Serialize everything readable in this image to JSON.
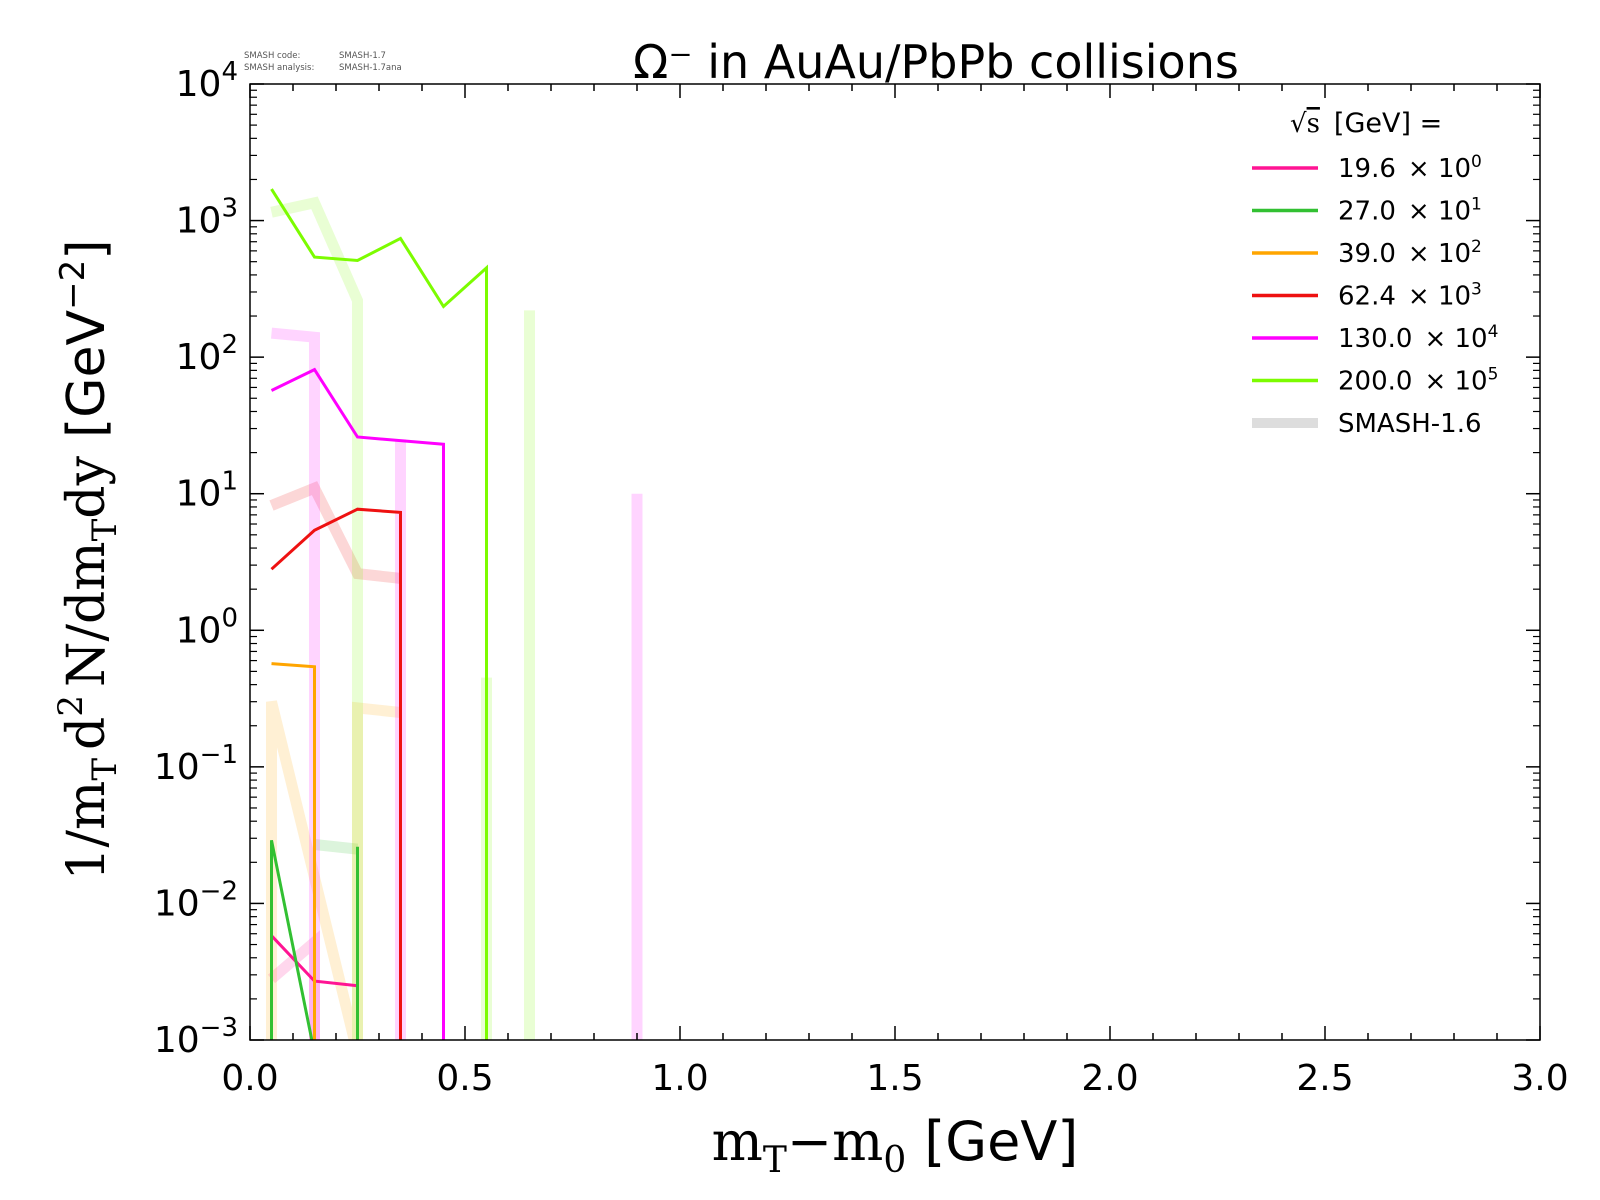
{
  "chart_data": {
    "type": "line",
    "title": "Ω⁻ in AuAu/PbPb collisions",
    "code_info": {
      "code_label": "SMASH code:",
      "code_value": "SMASH-1.7",
      "analysis_label": "SMASH analysis:",
      "analysis_value": "SMASH-1.7ana"
    },
    "xlabel": "mT−m0 [GeV]",
    "xlabel_parts": {
      "m1": "m",
      "sub1": "T",
      "dash": "−m",
      "sub2": "0",
      "unit": "[GeV]"
    },
    "ylabel": "1/mT d2 N/dmTdy [GeV−2]",
    "ylabel_parts": {
      "a": "1/m",
      "sub": "T",
      "b": "d",
      "sup": "2",
      "c": "N/dm",
      "sub2": "T",
      "d": "dy",
      "unit": "[GeV",
      "unit_sup": "−2",
      "unit_end": "]"
    },
    "xlim": [
      0.0,
      3.0
    ],
    "ylim": [
      0.001,
      10000
    ],
    "yscale": "log",
    "x_ticks": [
      "0.0",
      "0.5",
      "1.0",
      "1.5",
      "2.0",
      "2.5",
      "3.0"
    ],
    "y_ticks": [
      {
        "value": 0.001,
        "base": "10",
        "exp": "−3"
      },
      {
        "value": 0.01,
        "base": "10",
        "exp": "−2"
      },
      {
        "value": 0.1,
        "base": "10",
        "exp": "−1"
      },
      {
        "value": 1,
        "base": "10",
        "exp": "0"
      },
      {
        "value": 10,
        "base": "10",
        "exp": "1"
      },
      {
        "value": 100,
        "base": "10",
        "exp": "2"
      },
      {
        "value": 1000,
        "base": "10",
        "exp": "3"
      },
      {
        "value": 10000,
        "base": "10",
        "exp": "4"
      }
    ],
    "legend": {
      "placement": "top-right",
      "title": "√s [GeV] =",
      "title_parts": {
        "root": "√",
        "s": "s",
        "rest": "[GeV] ="
      }
    },
    "series": [
      {
        "name": "19.6 × 10⁰",
        "label": "19.6",
        "times": "× 10",
        "exp": "0",
        "color": "#ff1493",
        "x": [
          0.05,
          0.15,
          0.25
        ],
        "y": [
          0.0058,
          0.0027,
          0.0025
        ]
      },
      {
        "name": "27.0 × 10¹",
        "label": "27.0",
        "times": "× 10",
        "exp": "1",
        "color": "#32c032",
        "x": [
          0.05,
          0.05,
          0.15,
          0.25,
          0.25
        ],
        "y": [
          0.0008,
          0.029,
          0.0008,
          0.0008,
          0.026
        ]
      },
      {
        "name": "39.0 × 10²",
        "label": "39.0",
        "times": "× 10",
        "exp": "2",
        "color": "#ffa500",
        "x": [
          0.05,
          0.15,
          0.15
        ],
        "y": [
          0.57,
          0.54,
          0.0008
        ]
      },
      {
        "name": "62.4 × 10³",
        "label": "62.4",
        "times": "× 10",
        "exp": "3",
        "color": "#ee1111",
        "x": [
          0.05,
          0.15,
          0.25,
          0.35,
          0.35
        ],
        "y": [
          2.8,
          5.4,
          7.7,
          7.3,
          0.0008
        ]
      },
      {
        "name": "130.0 × 10⁴",
        "label": "130.0",
        "times": "× 10",
        "exp": "4",
        "color": "#ff00ff",
        "x": [
          0.05,
          0.15,
          0.25,
          0.45,
          0.45
        ],
        "y": [
          57,
          81,
          26,
          23,
          0.0008
        ]
      },
      {
        "name": "200.0 × 10⁵",
        "label": "200.0",
        "times": "× 10",
        "exp": "5",
        "color": "#7cfc00",
        "x": [
          0.05,
          0.15,
          0.25,
          0.35,
          0.45,
          0.55,
          0.55
        ],
        "y": [
          1700,
          540,
          510,
          740,
          235,
          450,
          0.0008
        ]
      }
    ],
    "reference": {
      "name": "SMASH-1.6",
      "color": "#dddddd",
      "series": [
        {
          "color": "#ff1493",
          "x": [
            0.05,
            0.15,
            0.15
          ],
          "y": [
            0.0028,
            0.0052,
            0.0008
          ]
        },
        {
          "color": "#32c032",
          "x": [
            0.15,
            0.25
          ],
          "y": [
            0.027,
            0.025
          ]
        },
        {
          "color": "#ffa500",
          "x": [
            0.05,
            0.05,
            0.25,
            0.25,
            0.35
          ],
          "y": [
            0.0008,
            0.3,
            0.0008,
            0.27,
            0.25
          ]
        },
        {
          "color": "#ee1111",
          "x": [
            0.05,
            0.15,
            0.25,
            0.35
          ],
          "y": [
            8.2,
            11,
            2.6,
            2.4
          ]
        },
        {
          "color": "#ff00ff",
          "x": [
            0.05,
            0.15,
            0.15
          ],
          "y": [
            150,
            140,
            0.0008
          ]
        },
        {
          "color": "#ff00ff",
          "x": [
            0.35,
            0.35
          ],
          "y": [
            25,
            0.0008
          ]
        },
        {
          "color": "#ff00ff",
          "x": [
            0.9,
            0.9
          ],
          "y": [
            10,
            0.0008
          ]
        },
        {
          "color": "#7cfc00",
          "x": [
            0.05,
            0.15,
            0.25,
            0.25
          ],
          "y": [
            1150,
            1350,
            260,
            0.0008
          ]
        },
        {
          "color": "#7cfc00",
          "x": [
            0.65,
            0.65
          ],
          "y": [
            220,
            0.0008
          ]
        },
        {
          "color": "#7cfc00",
          "x": [
            0.55,
            0.55
          ],
          "y": [
            0.45,
            0.0008
          ]
        }
      ]
    }
  }
}
